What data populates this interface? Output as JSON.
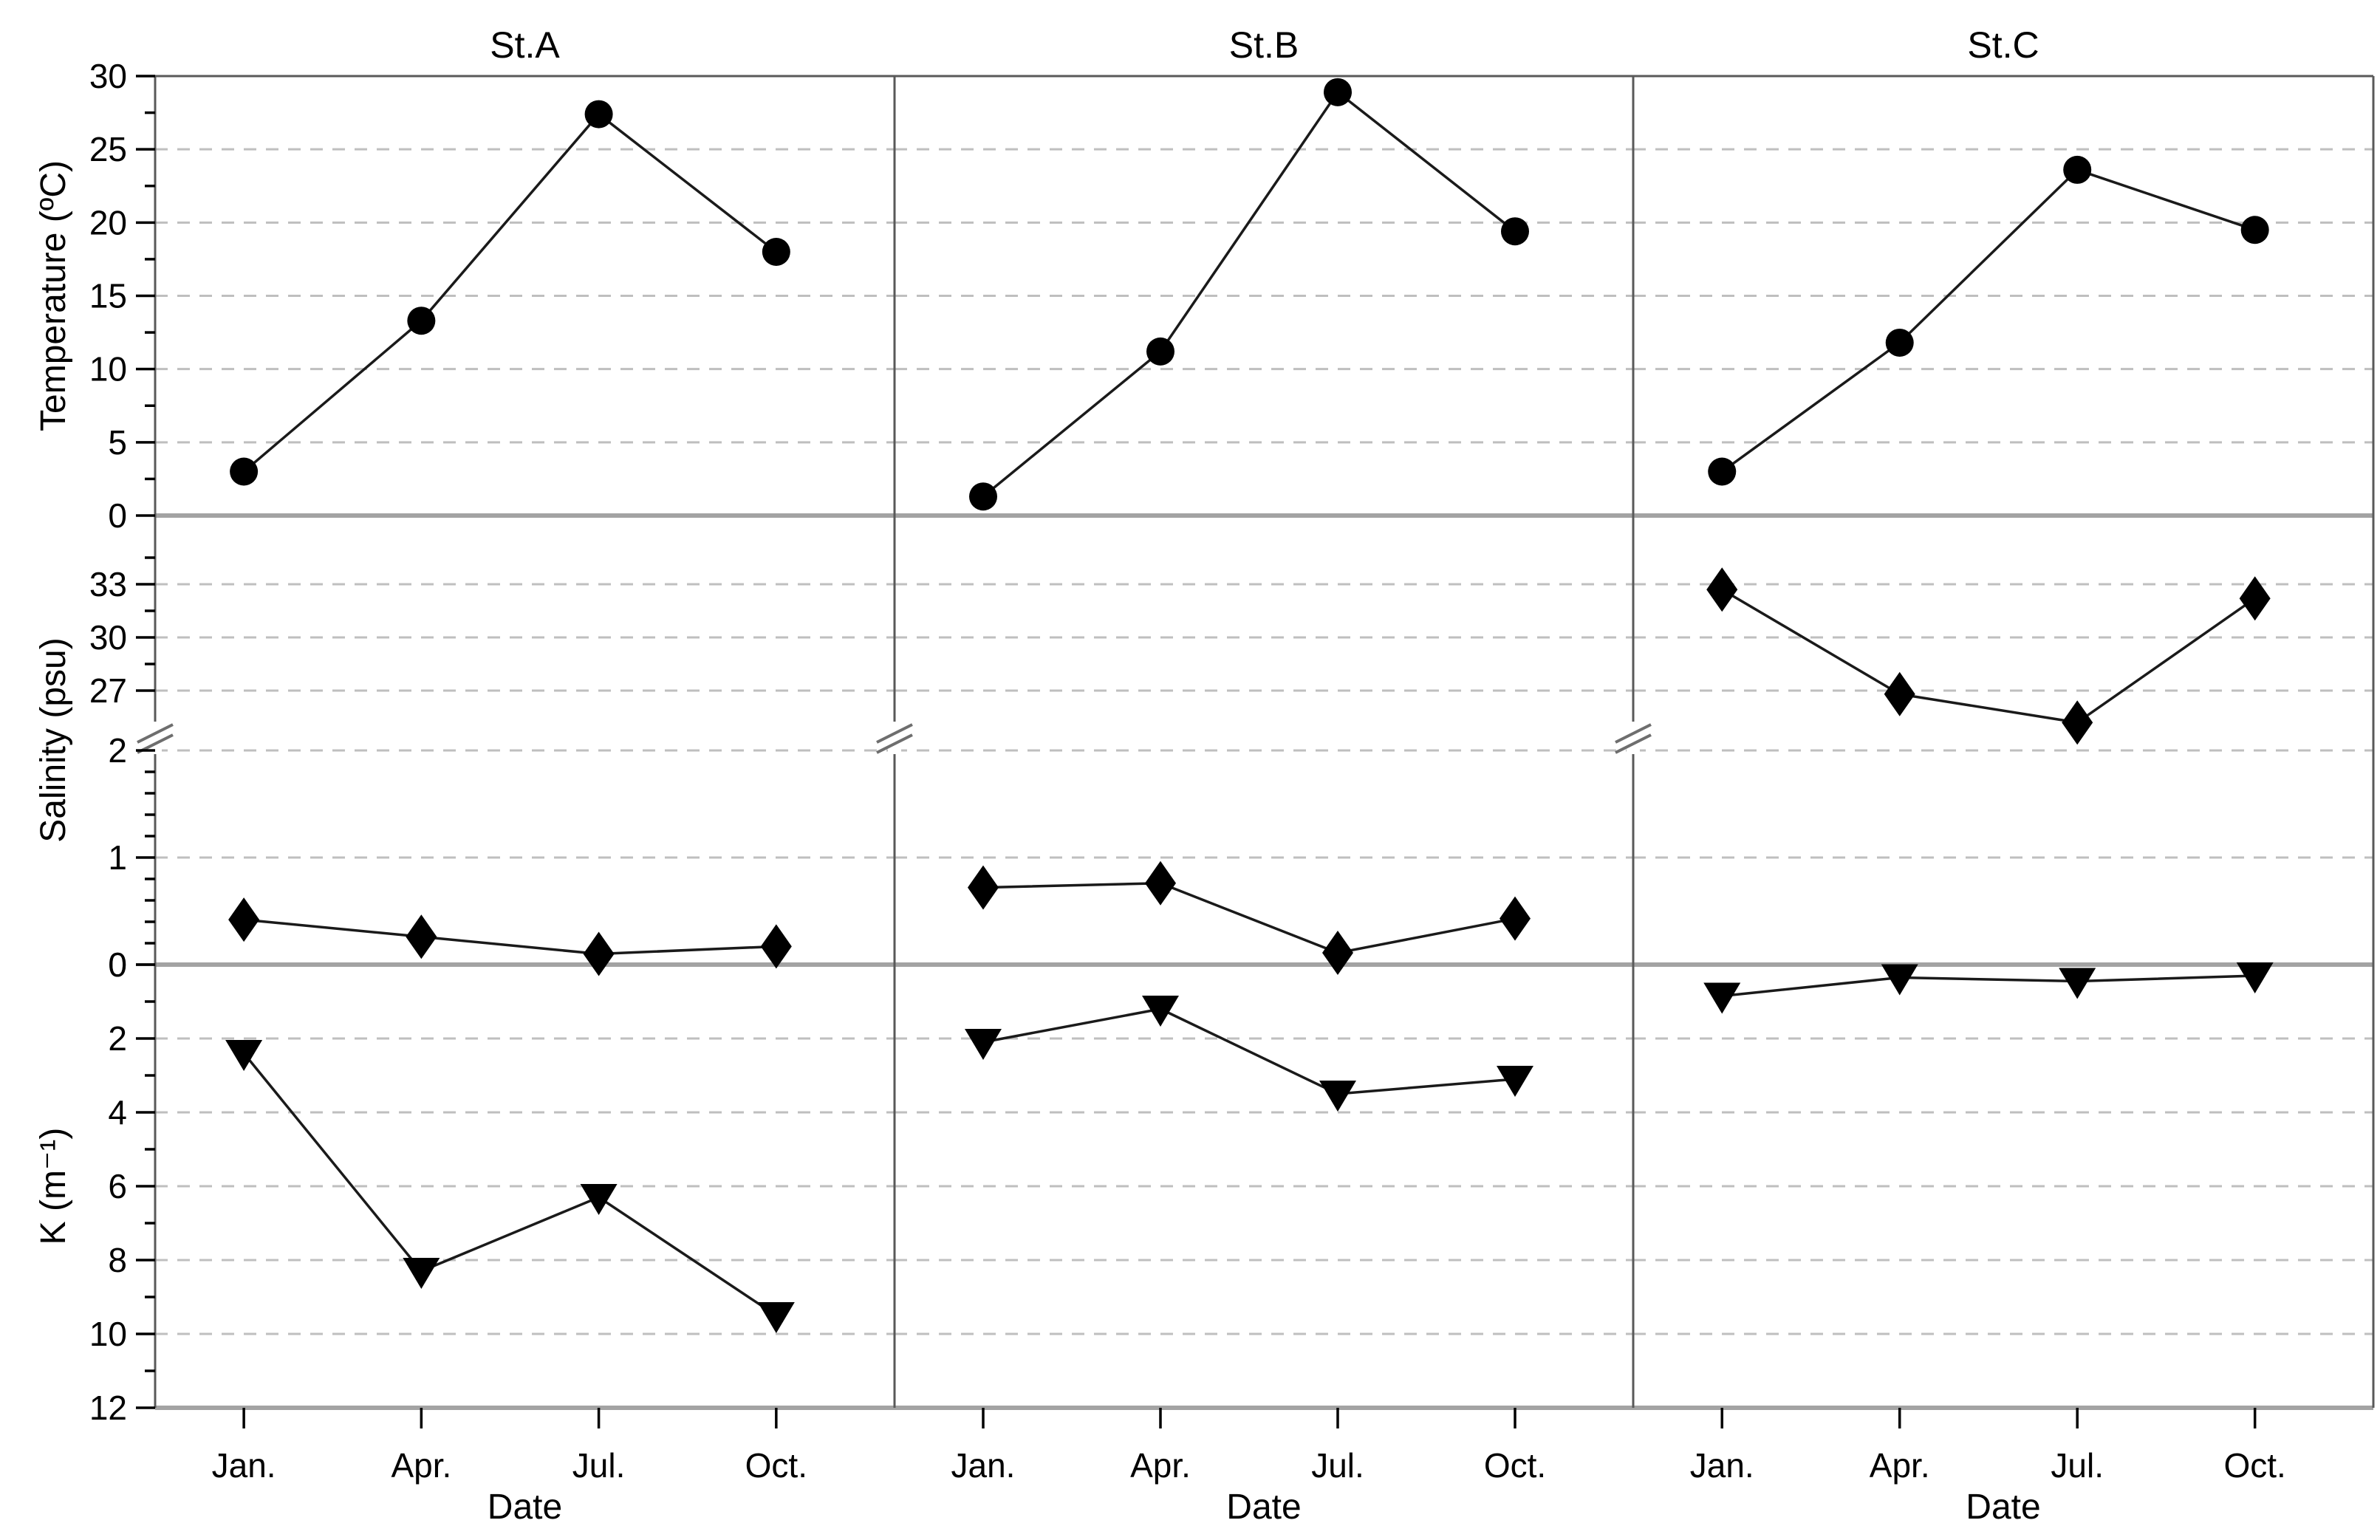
{
  "figure": {
    "panel_titles": [
      "St.A",
      "St.B",
      "St.C"
    ],
    "x_axis": {
      "title": "Date",
      "tick_labels": [
        "Jan.",
        "Apr.",
        "Jul.",
        "Oct."
      ]
    },
    "colors": {
      "background": "#ffffff",
      "data_line": "#1a1a1a",
      "marker": "#000000",
      "grid": "#bfbfbf",
      "frame": "#595959",
      "boundary": "#a3a3a3",
      "tick": "#000000",
      "text": "#000000"
    }
  },
  "chart_data": [
    {
      "type": "line",
      "row": "temperature",
      "ylabel": "Temperature (ºC)",
      "marker": "circle",
      "categories": [
        "Jan.",
        "Apr.",
        "Jul.",
        "Oct."
      ],
      "ylim": [
        0,
        30
      ],
      "yticks": [
        0,
        5,
        10,
        15,
        20,
        25,
        30
      ],
      "ytick_minor": [
        2.5,
        7.5,
        12.5,
        17.5,
        22.5,
        27.5
      ],
      "grid": "dashed",
      "legend_position": "none",
      "series": [
        {
          "name": "St.A",
          "values": [
            3.0,
            13.3,
            27.4,
            18.0
          ]
        },
        {
          "name": "St.B",
          "values": [
            1.3,
            11.2,
            28.9,
            19.4
          ]
        },
        {
          "name": "St.C",
          "values": [
            3.0,
            11.8,
            23.6,
            19.5
          ]
        }
      ]
    },
    {
      "type": "line",
      "row": "salinity",
      "ylabel": "Salinity (psu)",
      "marker": "diamond",
      "categories": [
        "Jan.",
        "Apr.",
        "Jul.",
        "Oct."
      ],
      "axis_break": {
        "upper_ticks": [
          27,
          30,
          33
        ],
        "upper_minor": [
          28.5,
          31.5,
          34.5
        ],
        "upper_range_top": 36.9,
        "break_value_upper": 25.0,
        "lower_ticks": [
          0,
          1,
          2
        ],
        "lower_minor": [
          0.2,
          0.4,
          0.6,
          0.8,
          1.2,
          1.4,
          1.6,
          1.8
        ],
        "lower_range": [
          0,
          2
        ]
      },
      "grid": "dashed",
      "legend_position": "none",
      "series": [
        {
          "name": "St.A",
          "values": [
            0.42,
            0.26,
            0.1,
            0.17
          ]
        },
        {
          "name": "St.B",
          "values": [
            0.72,
            0.76,
            0.11,
            0.43
          ]
        },
        {
          "name": "St.C",
          "values": [
            32.7,
            26.8,
            25.2,
            32.2
          ]
        }
      ]
    },
    {
      "type": "line",
      "row": "light-attenuation",
      "ylabel": "K (m⁻¹)",
      "marker": "triangle-down",
      "categories": [
        "Jan.",
        "Apr.",
        "Jul.",
        "Oct."
      ],
      "ylim": [
        0,
        12
      ],
      "y_inverted": true,
      "yticks": [
        0,
        2,
        4,
        6,
        8,
        10,
        12
      ],
      "ytick_minor": [
        1,
        3,
        5,
        7,
        9,
        11
      ],
      "grid": "dashed",
      "legend_position": "none",
      "series": [
        {
          "name": "St.A",
          "values": [
            2.4,
            8.3,
            6.3,
            9.5
          ]
        },
        {
          "name": "St.B",
          "values": [
            2.1,
            1.2,
            3.5,
            3.1
          ]
        },
        {
          "name": "St.C",
          "values": [
            0.85,
            0.35,
            0.45,
            0.3
          ]
        }
      ]
    }
  ]
}
